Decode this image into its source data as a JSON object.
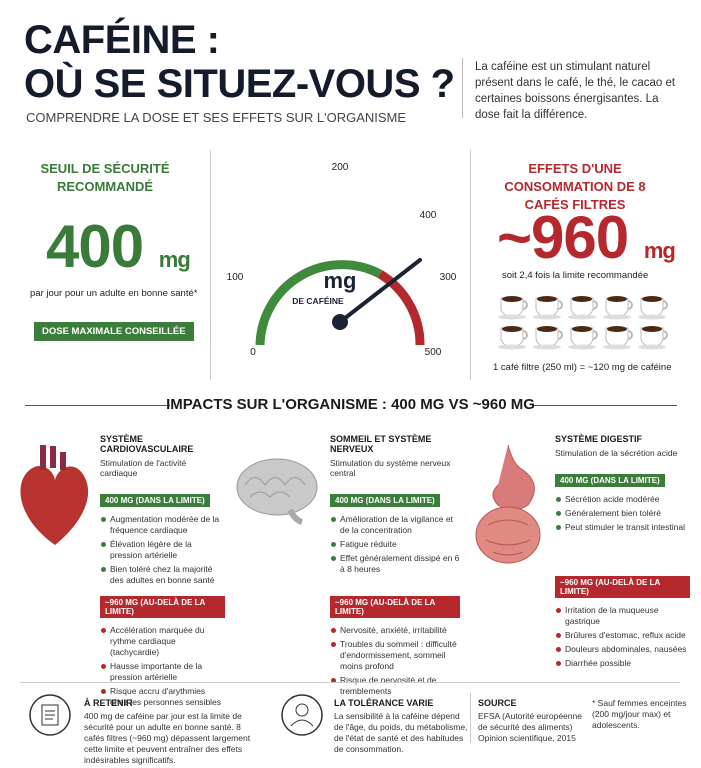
{
  "header": {
    "title_line1": "CAFÉINE :",
    "title_line2": "OÙ SE SITUEZ-VOUS ?",
    "subtitle": "COMPRENDRE LA DOSE ET SES EFFETS SUR L'ORGANISME",
    "intro": "La caféine est un stimulant naturel présent dans le café, le thé, le cacao et certaines boissons énergisantes. La dose fait la différence."
  },
  "safety": {
    "title": "SEUIL DE SÉCURITÉ RECOMMANDÉ",
    "amount": "400",
    "unit": "mg",
    "note": "par jour pour un adulte en bonne santé*",
    "badge": "DOSE MAXIMALE CONSEILLÉE"
  },
  "gauge": {
    "labels": [
      "0",
      "100",
      "200",
      "400",
      "300",
      "500"
    ],
    "unit": "mg",
    "caption": "DE CAFÉINE"
  },
  "effects": {
    "title": "EFFETS D'UNE CONSOMMATION DE 8 CAFÉS FILTRES",
    "amount": "~960",
    "unit": "mg",
    "ratio": "soit 2,4 fois la limite recommandée",
    "note": "1 café filtre (250 ml) = ~120 mg de caféine"
  },
  "impacts": {
    "title": "IMPACTS SUR L'ORGANISME : 400 MG VS ~960 MG",
    "columns": [
      {
        "title": "SYSTÈME CARDIOVASCULAIRE",
        "subtitle": "Stimulation de l'activité cardiaque",
        "low_label": "400 MG (DANS LA LIMITE)",
        "low_items": [
          "Augmentation modérée de la fréquence cardiaque",
          "Élévation légère de la pression artérielle",
          "Bien toléré chez la majorité des adultes en bonne santé"
        ],
        "high_label": "~960 MG (AU-DELÀ DE LA LIMITE)",
        "high_items": [
          "Accélération marquée du rythme cardiaque (tachycardie)",
          "Hausse importante de la pression artérielle",
          "Risque accru d'arythmies chez les personnes sensibles"
        ]
      },
      {
        "title": "SOMMEIL ET SYSTÈME NERVEUX",
        "subtitle": "Stimulation du système nerveux central",
        "low_label": "400 MG (DANS LA LIMITE)",
        "low_items": [
          "Amélioration de la vigilance et de la concentration",
          "Fatigue réduite",
          "Effet généralement dissipé en 6 à 8 heures"
        ],
        "high_label": "~960 MG (AU-DELÀ DE LA LIMITE)",
        "high_items": [
          "Nervosité, anxiété, irritabilité",
          "Troubles du sommeil : difficulté d'endormissement, sommeil moins profond",
          "Risque de nervosité et de tremblements"
        ]
      },
      {
        "title": "SYSTÈME DIGESTIF",
        "subtitle": "Stimulation de la sécrétion acide",
        "low_label": "400 MG (DANS LA LIMITE)",
        "low_items": [
          "Sécrétion acide modérée",
          "Généralement bien toléré",
          "Peut stimuler le transit intestinal"
        ],
        "high_label": "~960 MG (AU-DELÀ DE LA LIMITE)",
        "high_items": [
          "Irritation de la muqueuse gastrique",
          "Brûlures d'estomac, reflux acide",
          "Douleurs abdominales, nausées",
          "Diarrhée possible"
        ]
      }
    ]
  },
  "footer": {
    "retain": {
      "title": "À RETENIR",
      "text": "400 mg de caféine par jour est la limite de sécurité pour un adulte en bonne santé. 8 cafés filtres (~960 mg) dépassent largement cette limite et peuvent entraîner des effets indésirables significatifs."
    },
    "tolerance": {
      "title": "LA TOLÉRANCE VARIE",
      "text": "La sensibilité à la caféine dépend de l'âge, du poids, du métabolisme, de l'état de santé et des habitudes de consommation."
    },
    "source": {
      "title": "SOURCE",
      "text": "EFSA (Autorité européenne de sécurité des aliments) Opinion scientifique, 2015"
    },
    "note": "* Sauf femmes enceintes (200 mg/jour max) et adolescents."
  }
}
